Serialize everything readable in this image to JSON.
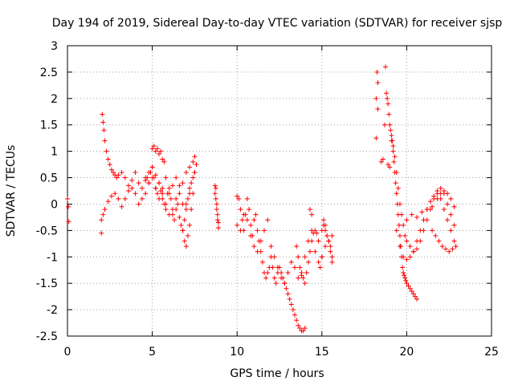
{
  "chart_data": {
    "type": "scatter",
    "title": "Day 194 of 2019, Sidereal Day-to-day VTEC variation (SDTVAR) for receiver sjsp",
    "xlabel": "GPS time / hours",
    "ylabel": "SDTVAR / TECUs",
    "xlim": [
      0,
      25
    ],
    "ylim": [
      -2.5,
      3
    ],
    "xticks": [
      "0",
      "5",
      "10",
      "15",
      "20",
      "25"
    ],
    "yticks": [
      "-2.5",
      "-2",
      "-1.5",
      "-1",
      "-0.5",
      "0",
      "0.5",
      "1",
      "1.5",
      "2",
      "2.5",
      "3"
    ],
    "grid": true,
    "marker": "+",
    "color": "#ff0000",
    "series": [
      {
        "name": "SDTVAR",
        "x": [
          0.0,
          0.05,
          0.08,
          2.0,
          2.05,
          2.1,
          2.15,
          2.2,
          2.3,
          2.4,
          2.5,
          2.6,
          2.7,
          2.8,
          2.9,
          3.0,
          3.2,
          3.4,
          3.6,
          3.8,
          4.0,
          4.2,
          4.4,
          4.6,
          4.8,
          5.0,
          5.2,
          5.4,
          5.6,
          5.8,
          6.0,
          6.2,
          6.4,
          6.6,
          6.8,
          7.0,
          7.2,
          7.4,
          7.5,
          2.0,
          2.1,
          2.2,
          2.4,
          2.6,
          2.8,
          3.0,
          3.2,
          3.4,
          3.6,
          3.8,
          4.0,
          4.2,
          4.4,
          4.6,
          4.8,
          5.0,
          5.2,
          5.4,
          5.6,
          5.8,
          6.0,
          6.2,
          6.4,
          6.6,
          6.8,
          7.0,
          7.2,
          4.6,
          4.7,
          4.8,
          4.9,
          5.0,
          5.1,
          5.2,
          5.3,
          5.4,
          5.5,
          5.6,
          5.7,
          5.8,
          5.9,
          6.0,
          6.1,
          6.2,
          6.3,
          6.4,
          6.5,
          6.6,
          6.7,
          6.8,
          6.9,
          7.0,
          7.1,
          7.2,
          7.3,
          7.4,
          7.5,
          5.0,
          5.1,
          5.2,
          5.3,
          5.4,
          5.5,
          5.6,
          5.7,
          6.8,
          6.9,
          7.0,
          7.1,
          7.2,
          7.3,
          7.4,
          7.5,
          7.6,
          8.7,
          8.75,
          8.8,
          8.85,
          8.9,
          8.7,
          8.8,
          8.9,
          8.75,
          8.85,
          10.0,
          10.1,
          10.2,
          10.3,
          10.4,
          10.5,
          10.6,
          10.7,
          10.8,
          10.9,
          11.0,
          11.1,
          11.2,
          11.3,
          11.4,
          11.5,
          11.6,
          11.7,
          11.8,
          11.9,
          12.0,
          12.1,
          12.2,
          12.3,
          12.4,
          12.5,
          12.6,
          12.7,
          12.8,
          12.9,
          13.0,
          13.1,
          13.2,
          13.3,
          13.4,
          13.5,
          13.6,
          13.7,
          13.8,
          13.9,
          14.0,
          10.0,
          10.2,
          10.4,
          10.6,
          10.8,
          11.0,
          11.2,
          11.4,
          11.6,
          11.8,
          12.0,
          12.2,
          12.4,
          12.6,
          12.8,
          13.0,
          13.2,
          13.4,
          13.6,
          13.8,
          14.0,
          14.2,
          14.4,
          14.6,
          14.8,
          15.0,
          15.2,
          15.4,
          15.6,
          13.5,
          13.6,
          13.7,
          13.8,
          13.9,
          14.0,
          14.1,
          14.2,
          14.3,
          14.4,
          14.5,
          14.6,
          14.7,
          14.8,
          14.9,
          15.0,
          15.1,
          15.2,
          15.3,
          15.4,
          15.5,
          15.6,
          14.3,
          14.4,
          15.0,
          15.1,
          15.2,
          15.3,
          15.4,
          15.5,
          15.6,
          18.2,
          18.25,
          18.3,
          18.2,
          18.3,
          18.5,
          18.6,
          18.7,
          18.75,
          18.8,
          18.85,
          18.9,
          18.95,
          19.0,
          19.05,
          19.1,
          19.15,
          19.2,
          19.25,
          19.3,
          19.35,
          19.4,
          19.45,
          19.5,
          19.55,
          19.6,
          19.65,
          19.7,
          19.75,
          19.8,
          19.85,
          19.9,
          19.95,
          20.0,
          20.1,
          20.2,
          20.3,
          20.4,
          20.5,
          20.6,
          18.9,
          19.0,
          19.1,
          19.2,
          19.3,
          19.4,
          19.5,
          19.6,
          19.7,
          19.8,
          19.9,
          20.0,
          20.2,
          20.4,
          20.6,
          20.8,
          21.0,
          21.2,
          21.4,
          21.6,
          21.8,
          22.0,
          22.2,
          22.4,
          22.6,
          22.8,
          19.4,
          19.6,
          19.8,
          20.0,
          20.2,
          20.4,
          20.6,
          20.8,
          21.0,
          21.2,
          21.4,
          21.6,
          21.8,
          22.0,
          22.2,
          22.4,
          22.6,
          22.8,
          20.0,
          20.3,
          20.6,
          20.9,
          21.2,
          21.5,
          21.8,
          22.0,
          22.2,
          22.4,
          22.6,
          22.8,
          21.5,
          21.7,
          21.9,
          22.1,
          22.3,
          22.5,
          22.7,
          22.9
        ],
        "y": [
          0.1,
          -0.05,
          -0.33,
          -0.55,
          1.7,
          1.55,
          1.4,
          1.2,
          1.0,
          0.85,
          0.75,
          0.65,
          0.6,
          0.55,
          0.5,
          0.55,
          0.6,
          0.5,
          0.35,
          0.45,
          0.6,
          0.4,
          0.3,
          0.5,
          0.6,
          0.7,
          0.55,
          0.4,
          0.3,
          0.5,
          0.2,
          0.35,
          0.5,
          0.35,
          0.4,
          0.6,
          0.7,
          0.8,
          0.9,
          -0.3,
          -0.2,
          -0.1,
          0.05,
          0.15,
          0.2,
          0.1,
          -0.05,
          0.1,
          0.25,
          0.3,
          0.2,
          0.0,
          0.1,
          0.2,
          0.4,
          0.5,
          0.3,
          0.1,
          0.2,
          0.0,
          -0.2,
          -0.1,
          0.1,
          0.2,
          0.0,
          -0.1,
          0.2,
          0.45,
          0.5,
          0.4,
          0.6,
          0.7,
          0.5,
          0.3,
          0.2,
          0.4,
          0.25,
          0.1,
          0.0,
          -0.1,
          0.2,
          0.3,
          0.1,
          -0.2,
          -0.3,
          -0.1,
          0.0,
          -0.25,
          -0.4,
          -0.5,
          -0.3,
          0.0,
          0.1,
          0.3,
          0.4,
          0.5,
          0.6,
          1.05,
          1.1,
          1.0,
          1.05,
          0.95,
          1.0,
          0.85,
          0.8,
          -0.5,
          -0.7,
          -0.8,
          -0.6,
          -0.4,
          -0.1,
          0.2,
          0.6,
          0.75,
          0.35,
          0.3,
          0.0,
          -0.3,
          -0.45,
          0.2,
          -0.1,
          -0.35,
          0.1,
          -0.2,
          0.15,
          0.1,
          -0.1,
          -0.3,
          -0.5,
          -0.2,
          0.1,
          -0.1,
          -0.4,
          -0.6,
          -0.3,
          -0.2,
          -0.5,
          -0.7,
          -0.9,
          -1.1,
          -1.3,
          -1.4,
          -1.3,
          -1.2,
          -1.0,
          -1.2,
          -1.4,
          -1.5,
          -1.3,
          -1.2,
          -1.3,
          -1.4,
          -1.5,
          -1.6,
          -1.7,
          -1.8,
          -1.9,
          -2.0,
          -2.1,
          -2.2,
          -2.3,
          -2.35,
          -2.4,
          -2.4,
          -2.35,
          -0.4,
          -0.5,
          -0.2,
          -0.3,
          -0.6,
          -0.8,
          -0.9,
          -0.7,
          -0.5,
          -0.3,
          -0.8,
          -1.0,
          -1.2,
          -1.4,
          -1.5,
          -1.3,
          -1.1,
          -1.2,
          -1.4,
          -1.3,
          -1.0,
          -0.7,
          -0.5,
          -0.9,
          -1.1,
          -1.0,
          -0.8,
          -0.7,
          -0.6,
          -0.8,
          -1.0,
          -1.2,
          -1.35,
          -1.4,
          -1.5,
          -1.3,
          -1.1,
          -0.9,
          -0.7,
          -0.55,
          -0.5,
          -0.55,
          -0.7,
          -1.2,
          -1.0,
          -0.4,
          -0.5,
          -0.6,
          -0.7,
          -0.8,
          -1.0,
          -0.1,
          -0.2,
          -0.5,
          -0.3,
          -0.4,
          -0.6,
          -0.7,
          -0.9,
          -1.1,
          1.25,
          2.5,
          2.3,
          2.0,
          1.8,
          0.8,
          0.85,
          1.5,
          2.6,
          2.1,
          2.0,
          1.9,
          1.7,
          1.5,
          1.4,
          1.3,
          1.2,
          1.0,
          0.8,
          0.6,
          0.4,
          0.2,
          0.0,
          -0.2,
          -0.4,
          -0.6,
          -0.8,
          -1.0,
          -1.2,
          -1.3,
          -1.35,
          -1.4,
          -1.45,
          -1.5,
          -1.55,
          -1.6,
          -1.65,
          -1.7,
          -1.75,
          -1.8,
          0.75,
          0.7,
          1.2,
          1.1,
          0.9,
          0.6,
          0.3,
          0.0,
          -0.2,
          -0.4,
          -0.6,
          -0.7,
          -0.8,
          -0.9,
          -0.85,
          -0.7,
          -0.5,
          -0.3,
          -0.1,
          0.1,
          0.2,
          0.1,
          -0.1,
          -0.3,
          -0.5,
          -0.7,
          -0.5,
          -0.8,
          -1.0,
          -1.05,
          -1.0,
          -0.9,
          -0.7,
          -0.5,
          -0.3,
          -0.1,
          0.05,
          0.15,
          0.25,
          0.3,
          0.2,
          0.0,
          -0.2,
          -0.4,
          -0.3,
          -0.2,
          -0.25,
          -0.15,
          -0.1,
          -0.05,
          0.1,
          0.2,
          0.25,
          0.2,
          0.1,
          -0.05,
          -0.5,
          -0.6,
          -0.7,
          -0.8,
          -0.85,
          -0.9,
          -0.85,
          -0.8
        ]
      }
    ]
  }
}
